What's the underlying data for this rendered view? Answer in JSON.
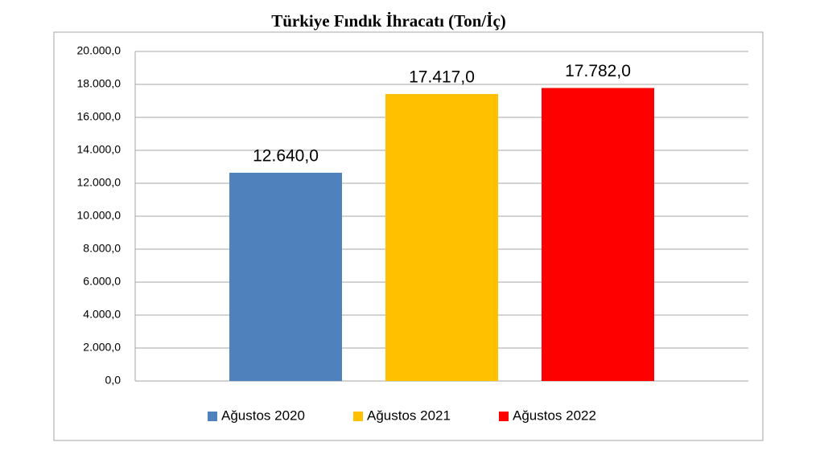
{
  "chart_data": {
    "type": "bar",
    "title": "Türkiye Fındık İhracatı (Ton/İç)",
    "categories": [
      null
    ],
    "series": [
      {
        "name": "Ağustos 2020",
        "color": "#4f81bd",
        "values": [
          12640
        ],
        "value_labels": [
          "12.640,0"
        ]
      },
      {
        "name": "Ağustos 2021",
        "color": "#ffc000",
        "values": [
          17417
        ],
        "value_labels": [
          "17.417,0"
        ]
      },
      {
        "name": "Ağustos 2022",
        "color": "#ff0000",
        "values": [
          17782
        ],
        "value_labels": [
          "17.782,0"
        ]
      }
    ],
    "ylim": [
      0,
      20000
    ],
    "yticks": [
      {
        "value": 0,
        "label": "0,0"
      },
      {
        "value": 2000,
        "label": "2.000,0"
      },
      {
        "value": 4000,
        "label": "4.000,0"
      },
      {
        "value": 6000,
        "label": "6.000,0"
      },
      {
        "value": 8000,
        "label": "8.000,0"
      },
      {
        "value": 10000,
        "label": "10.000,0"
      },
      {
        "value": 12000,
        "label": "12.000,0"
      },
      {
        "value": 14000,
        "label": "14.000,0"
      },
      {
        "value": 16000,
        "label": "16.000,0"
      },
      {
        "value": 18000,
        "label": "18.000,0"
      },
      {
        "value": 20000,
        "label": "20.000,0"
      }
    ],
    "grid": true,
    "legend": "bottom"
  }
}
